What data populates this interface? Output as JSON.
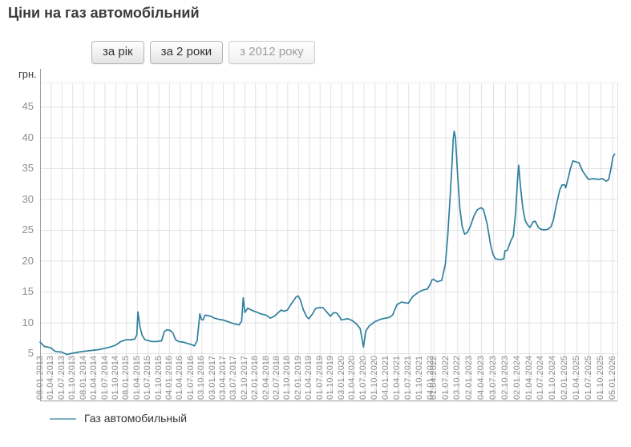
{
  "page": {
    "title": "Ціни на газ автомобільний"
  },
  "toolbar": {
    "buttons": [
      {
        "label": "за рік",
        "state": "enabled"
      },
      {
        "label": "за 2 роки",
        "state": "enabled"
      },
      {
        "label": "з 2012 року",
        "state": "disabled"
      }
    ]
  },
  "legend": {
    "label": "Газ автомобильный",
    "swatch_color": "#7fb1c2"
  },
  "chart_data": {
    "type": "line",
    "title": "Ціни на газ автомобільний",
    "xlabel": "",
    "ylabel": "грн.",
    "unit_label": "грн.",
    "grid": true,
    "legend_position": "bottom-left",
    "line_color": "#2f7f9e",
    "grid_color": "#e2e2e2",
    "axis_color": "#9f9f9f",
    "ylim": [
      3,
      49
    ],
    "yticks": [
      5,
      10,
      15,
      20,
      25,
      30,
      35,
      40,
      45
    ],
    "series_name": "Газ автомобильный",
    "x_tick_labels": [
      "08.01.2013",
      "01.04.2013",
      "01.07.2013",
      "01.10.2013",
      "08.01.2014",
      "01.04.2014",
      "01.07.2014",
      "01.10.2014",
      "08.01.2015",
      "01.04.2015",
      "01.07.2015",
      "01.10.2015",
      "04.01.2016",
      "01.04.2016",
      "01.07.2016",
      "03.10.2016",
      "03.01.2017",
      "03.04.2017",
      "03.07.2017",
      "02.10.2017",
      "02.01.2018",
      "02.04.2018",
      "02.07.2018",
      "01.10.2018",
      "02.01.2019",
      "01.04.2019",
      "01.07.2019",
      "01.10.2019",
      "03.01.2020",
      "01.04.2020",
      "01.07.2020",
      "01.10.2020",
      "04.01.2021",
      "01.04.2021",
      "01.07.2021",
      "01.10.2021",
      "04.01.2022",
      "01.04.2022",
      "01.07.2022",
      "03.10.2022",
      "02.01.2023",
      "04.04.2023",
      "03.07.2023",
      "02.10.2023",
      "02.01.2024",
      "01.04.2024",
      "01.07.2024",
      "01.10.2024",
      "02.01.2025",
      "01.04.2025",
      "01.07.2025",
      "01.10.2025",
      "05.01.2026"
    ],
    "x_tick_pos": [
      0,
      13.4,
      26.8,
      40.2,
      53.6,
      67.1,
      80.5,
      93.9,
      107.3,
      120.7,
      134.1,
      147.5,
      160.9,
      174.3,
      187.7,
      201.2,
      214.6,
      228,
      241.4,
      254.8,
      268.2,
      281.6,
      295,
      308.4,
      321.8,
      335.3,
      348.7,
      362.1,
      375.5,
      389.4,
      403.4,
      417.3,
      431.3,
      445.2,
      459.2,
      473.1,
      487.1,
      490.6,
      505.5,
      520.3,
      535.2,
      550.1,
      565,
      579.8,
      594.7,
      609.6,
      624.4,
      639.3,
      654.2,
      669,
      683.9,
      698.8,
      713.6
    ],
    "points": [
      [
        0,
        6.8
      ],
      [
        5.4,
        6.1
      ],
      [
        13.4,
        5.9
      ],
      [
        18.8,
        5.3
      ],
      [
        26.8,
        5.2
      ],
      [
        33.5,
        4.8
      ],
      [
        40.2,
        5.0
      ],
      [
        48.3,
        5.2
      ],
      [
        53.6,
        5.3
      ],
      [
        67.1,
        5.5
      ],
      [
        73.8,
        5.6
      ],
      [
        80.5,
        5.8
      ],
      [
        87.2,
        6.0
      ],
      [
        93.9,
        6.3
      ],
      [
        100.6,
        6.9
      ],
      [
        107.3,
        7.2
      ],
      [
        112.6,
        7.2
      ],
      [
        118,
        7.3
      ],
      [
        120.7,
        8.0
      ],
      [
        122,
        11.7
      ],
      [
        124.7,
        9.2
      ],
      [
        127.4,
        7.9
      ],
      [
        130.7,
        7.2
      ],
      [
        134.1,
        7.1
      ],
      [
        139.5,
        6.9
      ],
      [
        144.8,
        6.9
      ],
      [
        151.5,
        7.0
      ],
      [
        154.9,
        8.5
      ],
      [
        158.2,
        8.8
      ],
      [
        162.3,
        8.7
      ],
      [
        165.6,
        8.3
      ],
      [
        169,
        7.2
      ],
      [
        173,
        6.9
      ],
      [
        178.4,
        6.8
      ],
      [
        183.7,
        6.6
      ],
      [
        189.1,
        6.4
      ],
      [
        192.4,
        6.2
      ],
      [
        195.8,
        7.0
      ],
      [
        197.8,
        9.5
      ],
      [
        199.2,
        11.4
      ],
      [
        201.2,
        10.5
      ],
      [
        203.2,
        10.4
      ],
      [
        205.9,
        11.2
      ],
      [
        209.2,
        11.1
      ],
      [
        213.2,
        11.0
      ],
      [
        217.2,
        10.7
      ],
      [
        222.6,
        10.5
      ],
      [
        228,
        10.4
      ],
      [
        234.7,
        10.1
      ],
      [
        241.4,
        9.8
      ],
      [
        248,
        9.6
      ],
      [
        251.4,
        10.2
      ],
      [
        253.4,
        14.0
      ],
      [
        255.4,
        11.6
      ],
      [
        258.8,
        12.3
      ],
      [
        262.1,
        12.1
      ],
      [
        265.5,
        11.9
      ],
      [
        269.5,
        11.7
      ],
      [
        274.9,
        11.4
      ],
      [
        281.6,
        11.2
      ],
      [
        287,
        10.7
      ],
      [
        292.3,
        11.0
      ],
      [
        296.4,
        11.5
      ],
      [
        300.4,
        12.0
      ],
      [
        304.4,
        11.8
      ],
      [
        308.4,
        12.0
      ],
      [
        313.8,
        13.1
      ],
      [
        319.2,
        14.1
      ],
      [
        321.8,
        14.3
      ],
      [
        324.5,
        13.7
      ],
      [
        328.5,
        12.0
      ],
      [
        332.6,
        10.9
      ],
      [
        335.3,
        10.6
      ],
      [
        339.3,
        11.3
      ],
      [
        343.3,
        12.2
      ],
      [
        347.3,
        12.4
      ],
      [
        352.7,
        12.4
      ],
      [
        356.7,
        11.8
      ],
      [
        362.1,
        11.0
      ],
      [
        366.1,
        11.6
      ],
      [
        370.1,
        11.5
      ],
      [
        374.1,
        10.8
      ],
      [
        375.5,
        10.4
      ],
      [
        379.7,
        10.5
      ],
      [
        383.9,
        10.6
      ],
      [
        389.4,
        10.3
      ],
      [
        395,
        9.7
      ],
      [
        399.2,
        9.0
      ],
      [
        403.4,
        6.0
      ],
      [
        406.2,
        8.6
      ],
      [
        410.3,
        9.4
      ],
      [
        417.3,
        10.1
      ],
      [
        424.3,
        10.5
      ],
      [
        431.3,
        10.7
      ],
      [
        435.4,
        10.8
      ],
      [
        439.6,
        11.2
      ],
      [
        445.2,
        12.9
      ],
      [
        450.7,
        13.3
      ],
      [
        454.9,
        13.2
      ],
      [
        459.2,
        13.1
      ],
      [
        464.7,
        14.2
      ],
      [
        468.9,
        14.6
      ],
      [
        473.1,
        15.0
      ],
      [
        478.7,
        15.3
      ],
      [
        482.9,
        15.4
      ],
      [
        487.1,
        16.3
      ],
      [
        488.8,
        16.9
      ],
      [
        490.6,
        17.0
      ],
      [
        495.1,
        16.6
      ],
      [
        501,
        16.8
      ],
      [
        505.5,
        19.5
      ],
      [
        508.4,
        24
      ],
      [
        511,
        29.5
      ],
      [
        513.5,
        35
      ],
      [
        515.3,
        39.8
      ],
      [
        516.5,
        41
      ],
      [
        518,
        40
      ],
      [
        520.5,
        34.5
      ],
      [
        523.5,
        28.5
      ],
      [
        526.5,
        25.5
      ],
      [
        529.5,
        24.3
      ],
      [
        533,
        24.6
      ],
      [
        536.7,
        25.6
      ],
      [
        541.2,
        27.3
      ],
      [
        545.6,
        28.3
      ],
      [
        550.1,
        28.6
      ],
      [
        553,
        28.3
      ],
      [
        557.5,
        26.0
      ],
      [
        562,
        22.5
      ],
      [
        565,
        21.0
      ],
      [
        568,
        20.3
      ],
      [
        573.9,
        20.2
      ],
      [
        578.4,
        20.3
      ],
      [
        579.8,
        21.6
      ],
      [
        582.8,
        21.7
      ],
      [
        587.3,
        23.3
      ],
      [
        590.2,
        24.0
      ],
      [
        593.2,
        28.0
      ],
      [
        595.4,
        33.0
      ],
      [
        596.9,
        35.5
      ],
      [
        599.2,
        32.0
      ],
      [
        602.1,
        28.5
      ],
      [
        605.1,
        26.5
      ],
      [
        608.1,
        25.8
      ],
      [
        611,
        25.4
      ],
      [
        614.8,
        26.3
      ],
      [
        617.7,
        26.4
      ],
      [
        621.4,
        25.4
      ],
      [
        624.4,
        25.1
      ],
      [
        628.9,
        25.0
      ],
      [
        633.4,
        25.1
      ],
      [
        637.1,
        25.5
      ],
      [
        640,
        26.5
      ],
      [
        643.8,
        29.0
      ],
      [
        648.2,
        31.5
      ],
      [
        651.2,
        32.3
      ],
      [
        654.2,
        32.3
      ],
      [
        655.6,
        31.8
      ],
      [
        657.9,
        33.0
      ],
      [
        661.6,
        35.0
      ],
      [
        664.6,
        36.2
      ],
      [
        669,
        36.0
      ],
      [
        672,
        35.9
      ],
      [
        676.4,
        34.6
      ],
      [
        679.4,
        34.0
      ],
      [
        683.9,
        33.2
      ],
      [
        689.8,
        33.3
      ],
      [
        695.8,
        33.2
      ],
      [
        701.7,
        33.3
      ],
      [
        706.2,
        32.9
      ],
      [
        709.2,
        33.2
      ],
      [
        712.1,
        35.0
      ],
      [
        714.4,
        36.8
      ],
      [
        716.6,
        37.3
      ]
    ]
  }
}
